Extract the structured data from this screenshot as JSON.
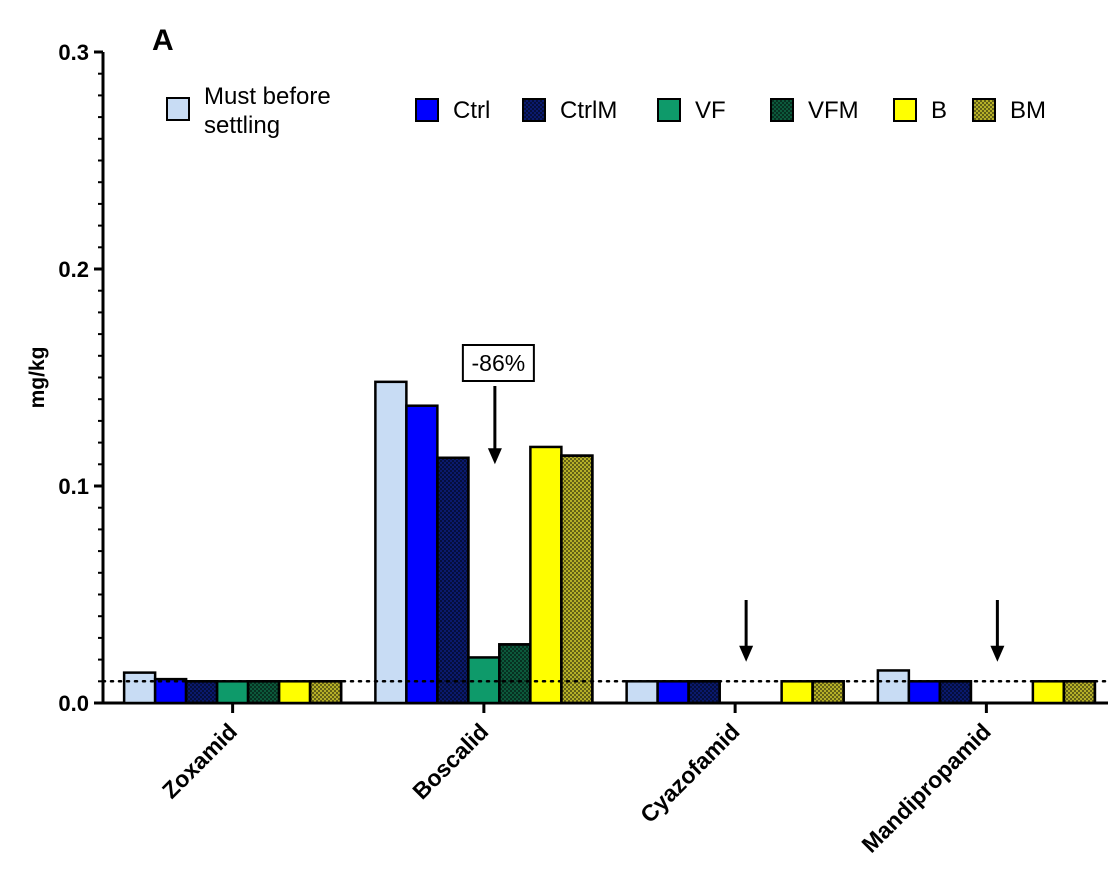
{
  "chart_data": {
    "type": "bar",
    "panel_label": "A",
    "ylabel": "mg/kg",
    "xlabel": "",
    "ylim": [
      0,
      0.3
    ],
    "y_ticks": [
      "0.0",
      "0.1",
      "0.2",
      "0.3"
    ],
    "categories": [
      "Zoxamid",
      "Boscalid",
      "Cyazofamid",
      "Mandipropamid"
    ],
    "reference_line": {
      "y": 0.01,
      "style": "dotted"
    },
    "series": [
      {
        "name": "Must before settling",
        "color": "#c8dcf4",
        "pattern": "solid",
        "values": [
          0.014,
          0.148,
          0.01,
          0.015
        ]
      },
      {
        "name": "Ctrl",
        "color": "#0000ff",
        "pattern": "solid",
        "values": [
          0.011,
          0.137,
          0.01,
          0.01
        ]
      },
      {
        "name": "CtrlM",
        "color": "#0a1a6e",
        "pattern": "crosshatch",
        "values": [
          0.01,
          0.113,
          0.01,
          0.01
        ]
      },
      {
        "name": "VF",
        "color": "#0e9a6a",
        "pattern": "solid",
        "values": [
          0.01,
          0.021,
          null,
          null
        ]
      },
      {
        "name": "VFM",
        "color": "#0c5a3c",
        "pattern": "crosshatch",
        "values": [
          0.01,
          0.027,
          null,
          null
        ]
      },
      {
        "name": "B",
        "color": "#ffff00",
        "pattern": "solid",
        "values": [
          0.01,
          0.118,
          0.01,
          0.01
        ]
      },
      {
        "name": "BM",
        "color": "#b5b028",
        "pattern": "crosshatch",
        "values": [
          0.01,
          0.114,
          0.01,
          0.01
        ]
      }
    ],
    "annotations": [
      {
        "category": "Boscalid",
        "text": "-86%",
        "arrow_to": 0.11
      },
      {
        "category": "Cyazofamid",
        "text": "",
        "arrow_to": 0.019
      },
      {
        "category": "Mandipropamid",
        "text": "",
        "arrow_to": 0.019
      }
    ],
    "legend_placement": "top",
    "grid": false
  }
}
